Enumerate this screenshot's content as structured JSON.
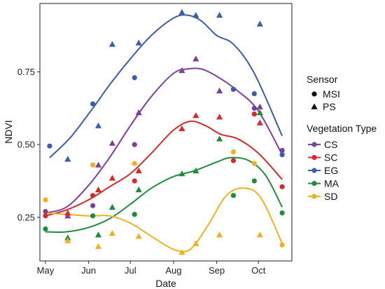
{
  "chart_data": {
    "type": "scatter",
    "title": "",
    "xlabel": "Date",
    "ylabel": "NDVI",
    "x_axis": {
      "range": [
        "2020-04-27",
        "2020-10-25"
      ],
      "ticks": [
        {
          "label": "May",
          "date": "2020-05-01"
        },
        {
          "label": "Jun",
          "date": "2020-06-01"
        },
        {
          "label": "Jul",
          "date": "2020-07-01"
        },
        {
          "label": "Aug",
          "date": "2020-08-01"
        },
        {
          "label": "Sep",
          "date": "2020-09-01"
        },
        {
          "label": "Oct",
          "date": "2020-10-01"
        }
      ]
    },
    "y_axis": {
      "range": [
        0.1,
        0.985
      ],
      "ticks": [
        0.25,
        0.5,
        0.75
      ],
      "tick_labels": [
        "0.25",
        "0.50",
        "0.75"
      ]
    },
    "grid": false,
    "legend_position": "right",
    "legends": {
      "sensor": {
        "title": "Sensor",
        "items": [
          {
            "label": "MSI",
            "shape": "circle"
          },
          {
            "label": "PS",
            "shape": "triangle"
          }
        ]
      },
      "vegetation": {
        "title": "Vegetation Type",
        "items": [
          {
            "label": "CS",
            "color": "#7B3F9E"
          },
          {
            "label": "SC",
            "color": "#D42A2A"
          },
          {
            "label": "EG",
            "color": "#3C5DAA"
          },
          {
            "label": "MA",
            "color": "#1E8C3A"
          },
          {
            "label": "SD",
            "color": "#F2B01E"
          }
        ]
      }
    },
    "series": [
      {
        "name": "CS",
        "color": "#7B3F9E",
        "points": [
          {
            "date": "2020-05-01",
            "y": 0.27,
            "sensor": "MSI"
          },
          {
            "date": "2020-05-17",
            "y": 0.255,
            "sensor": "PS"
          },
          {
            "date": "2020-06-04",
            "y": 0.29,
            "sensor": "MSI"
          },
          {
            "date": "2020-06-08",
            "y": 0.43,
            "sensor": "PS"
          },
          {
            "date": "2020-06-18",
            "y": 0.505,
            "sensor": "PS"
          },
          {
            "date": "2020-07-04",
            "y": 0.5,
            "sensor": "MSI"
          },
          {
            "date": "2020-07-07",
            "y": 0.61,
            "sensor": "PS"
          },
          {
            "date": "2020-08-07",
            "y": 0.755,
            "sensor": "PS"
          },
          {
            "date": "2020-08-17",
            "y": 0.795,
            "sensor": "PS"
          },
          {
            "date": "2020-09-03",
            "y": 0.685,
            "sensor": "PS"
          },
          {
            "date": "2020-09-13",
            "y": 0.69,
            "sensor": "MSI"
          },
          {
            "date": "2020-09-28",
            "y": 0.625,
            "sensor": "MSI"
          },
          {
            "date": "2020-10-02",
            "y": 0.63,
            "sensor": "PS"
          },
          {
            "date": "2020-10-18",
            "y": 0.48,
            "sensor": "MSI"
          }
        ],
        "trend": [
          {
            "date": "2020-05-01",
            "y": 0.265
          },
          {
            "date": "2020-05-16",
            "y": 0.285
          },
          {
            "date": "2020-06-01",
            "y": 0.36
          },
          {
            "date": "2020-06-16",
            "y": 0.455
          },
          {
            "date": "2020-07-01",
            "y": 0.565
          },
          {
            "date": "2020-07-16",
            "y": 0.665
          },
          {
            "date": "2020-08-01",
            "y": 0.745
          },
          {
            "date": "2020-08-11",
            "y": 0.76
          },
          {
            "date": "2020-08-21",
            "y": 0.76
          },
          {
            "date": "2020-09-01",
            "y": 0.735
          },
          {
            "date": "2020-09-16",
            "y": 0.685
          },
          {
            "date": "2020-10-01",
            "y": 0.615
          },
          {
            "date": "2020-10-18",
            "y": 0.465
          }
        ]
      },
      {
        "name": "SC",
        "color": "#D42A2A",
        "points": [
          {
            "date": "2020-05-01",
            "y": 0.255,
            "sensor": "MSI"
          },
          {
            "date": "2020-05-17",
            "y": 0.265,
            "sensor": "PS"
          },
          {
            "date": "2020-06-04",
            "y": 0.325,
            "sensor": "MSI"
          },
          {
            "date": "2020-06-08",
            "y": 0.345,
            "sensor": "PS"
          },
          {
            "date": "2020-06-18",
            "y": 0.385,
            "sensor": "PS"
          },
          {
            "date": "2020-07-04",
            "y": 0.375,
            "sensor": "MSI"
          },
          {
            "date": "2020-07-07",
            "y": 0.41,
            "sensor": "PS"
          },
          {
            "date": "2020-08-07",
            "y": 0.555,
            "sensor": "PS"
          },
          {
            "date": "2020-08-17",
            "y": 0.6,
            "sensor": "PS"
          },
          {
            "date": "2020-09-03",
            "y": 0.595,
            "sensor": "PS"
          },
          {
            "date": "2020-09-13",
            "y": 0.445,
            "sensor": "MSI"
          },
          {
            "date": "2020-09-28",
            "y": 0.605,
            "sensor": "MSI"
          },
          {
            "date": "2020-10-02",
            "y": 0.575,
            "sensor": "PS"
          },
          {
            "date": "2020-10-18",
            "y": 0.355,
            "sensor": "MSI"
          }
        ],
        "trend": [
          {
            "date": "2020-05-01",
            "y": 0.255
          },
          {
            "date": "2020-05-16",
            "y": 0.275
          },
          {
            "date": "2020-06-01",
            "y": 0.31
          },
          {
            "date": "2020-06-16",
            "y": 0.355
          },
          {
            "date": "2020-07-01",
            "y": 0.4
          },
          {
            "date": "2020-07-16",
            "y": 0.47
          },
          {
            "date": "2020-08-01",
            "y": 0.55
          },
          {
            "date": "2020-08-13",
            "y": 0.58
          },
          {
            "date": "2020-08-24",
            "y": 0.565
          },
          {
            "date": "2020-09-04",
            "y": 0.535
          },
          {
            "date": "2020-09-16",
            "y": 0.52
          },
          {
            "date": "2020-10-01",
            "y": 0.47
          },
          {
            "date": "2020-10-18",
            "y": 0.38
          }
        ]
      },
      {
        "name": "EG",
        "color": "#3C5DAA",
        "points": [
          {
            "date": "2020-05-04",
            "y": 0.495,
            "sensor": "MSI"
          },
          {
            "date": "2020-05-17",
            "y": 0.45,
            "sensor": "PS"
          },
          {
            "date": "2020-06-04",
            "y": 0.64,
            "sensor": "MSI"
          },
          {
            "date": "2020-06-08",
            "y": 0.565,
            "sensor": "PS"
          },
          {
            "date": "2020-06-18",
            "y": 0.845,
            "sensor": "PS"
          },
          {
            "date": "2020-07-04",
            "y": 0.73,
            "sensor": "MSI"
          },
          {
            "date": "2020-07-07",
            "y": 0.85,
            "sensor": "PS"
          },
          {
            "date": "2020-08-07",
            "y": 0.955,
            "sensor": "PS"
          },
          {
            "date": "2020-08-17",
            "y": 0.945,
            "sensor": "PS"
          },
          {
            "date": "2020-09-03",
            "y": 0.945,
            "sensor": "PS"
          },
          {
            "date": "2020-09-13",
            "y": 0.69,
            "sensor": "MSI"
          },
          {
            "date": "2020-09-28",
            "y": 0.675,
            "sensor": "MSI"
          },
          {
            "date": "2020-10-02",
            "y": 0.915,
            "sensor": "PS"
          },
          {
            "date": "2020-10-18",
            "y": 0.465,
            "sensor": "MSI"
          }
        ],
        "trend": [
          {
            "date": "2020-05-04",
            "y": 0.455
          },
          {
            "date": "2020-05-19",
            "y": 0.525
          },
          {
            "date": "2020-06-04",
            "y": 0.625
          },
          {
            "date": "2020-06-16",
            "y": 0.705
          },
          {
            "date": "2020-07-01",
            "y": 0.795
          },
          {
            "date": "2020-07-16",
            "y": 0.875
          },
          {
            "date": "2020-08-01",
            "y": 0.935
          },
          {
            "date": "2020-08-11",
            "y": 0.945
          },
          {
            "date": "2020-08-21",
            "y": 0.925
          },
          {
            "date": "2020-09-01",
            "y": 0.875
          },
          {
            "date": "2020-09-13",
            "y": 0.845
          },
          {
            "date": "2020-09-28",
            "y": 0.745
          },
          {
            "date": "2020-10-18",
            "y": 0.53
          }
        ]
      },
      {
        "name": "MA",
        "color": "#1E8C3A",
        "points": [
          {
            "date": "2020-05-01",
            "y": 0.21,
            "sensor": "MSI"
          },
          {
            "date": "2020-05-17",
            "y": 0.18,
            "sensor": "PS"
          },
          {
            "date": "2020-06-04",
            "y": 0.255,
            "sensor": "MSI"
          },
          {
            "date": "2020-06-08",
            "y": 0.19,
            "sensor": "PS"
          },
          {
            "date": "2020-06-18",
            "y": 0.285,
            "sensor": "PS"
          },
          {
            "date": "2020-07-04",
            "y": 0.26,
            "sensor": "MSI"
          },
          {
            "date": "2020-07-07",
            "y": 0.345,
            "sensor": "PS"
          },
          {
            "date": "2020-08-07",
            "y": 0.4,
            "sensor": "PS"
          },
          {
            "date": "2020-08-17",
            "y": 0.41,
            "sensor": "PS"
          },
          {
            "date": "2020-09-03",
            "y": 0.52,
            "sensor": "PS"
          },
          {
            "date": "2020-09-13",
            "y": 0.325,
            "sensor": "MSI"
          },
          {
            "date": "2020-09-28",
            "y": 0.375,
            "sensor": "MSI"
          },
          {
            "date": "2020-10-02",
            "y": 0.61,
            "sensor": "PS"
          },
          {
            "date": "2020-10-18",
            "y": 0.265,
            "sensor": "MSI"
          }
        ],
        "trend": [
          {
            "date": "2020-05-01",
            "y": 0.2
          },
          {
            "date": "2020-05-16",
            "y": 0.2
          },
          {
            "date": "2020-06-01",
            "y": 0.215
          },
          {
            "date": "2020-06-16",
            "y": 0.245
          },
          {
            "date": "2020-07-01",
            "y": 0.295
          },
          {
            "date": "2020-07-16",
            "y": 0.35
          },
          {
            "date": "2020-08-01",
            "y": 0.39
          },
          {
            "date": "2020-08-16",
            "y": 0.41
          },
          {
            "date": "2020-09-01",
            "y": 0.44
          },
          {
            "date": "2020-09-11",
            "y": 0.455
          },
          {
            "date": "2020-09-24",
            "y": 0.445
          },
          {
            "date": "2020-10-06",
            "y": 0.395
          },
          {
            "date": "2020-10-18",
            "y": 0.285
          }
        ]
      },
      {
        "name": "SD",
        "color": "#F2B01E",
        "points": [
          {
            "date": "2020-05-01",
            "y": 0.31,
            "sensor": "MSI"
          },
          {
            "date": "2020-05-17",
            "y": 0.17,
            "sensor": "PS"
          },
          {
            "date": "2020-06-04",
            "y": 0.43,
            "sensor": "MSI"
          },
          {
            "date": "2020-06-08",
            "y": 0.15,
            "sensor": "PS"
          },
          {
            "date": "2020-06-18",
            "y": 0.195,
            "sensor": "PS"
          },
          {
            "date": "2020-07-04",
            "y": 0.435,
            "sensor": "MSI"
          },
          {
            "date": "2020-07-07",
            "y": 0.185,
            "sensor": "PS"
          },
          {
            "date": "2020-08-07",
            "y": 0.13,
            "sensor": "PS"
          },
          {
            "date": "2020-08-17",
            "y": 0.16,
            "sensor": "PS"
          },
          {
            "date": "2020-09-03",
            "y": 0.19,
            "sensor": "PS"
          },
          {
            "date": "2020-09-13",
            "y": 0.475,
            "sensor": "MSI"
          },
          {
            "date": "2020-09-28",
            "y": 0.435,
            "sensor": "MSI"
          },
          {
            "date": "2020-10-02",
            "y": 0.19,
            "sensor": "PS"
          },
          {
            "date": "2020-10-18",
            "y": 0.155,
            "sensor": "MSI"
          }
        ],
        "trend": [
          {
            "date": "2020-05-01",
            "y": 0.265
          },
          {
            "date": "2020-05-16",
            "y": 0.26
          },
          {
            "date": "2020-06-01",
            "y": 0.255
          },
          {
            "date": "2020-06-16",
            "y": 0.255
          },
          {
            "date": "2020-07-01",
            "y": 0.23
          },
          {
            "date": "2020-07-16",
            "y": 0.185
          },
          {
            "date": "2020-08-01",
            "y": 0.14
          },
          {
            "date": "2020-08-13",
            "y": 0.14
          },
          {
            "date": "2020-08-26",
            "y": 0.225
          },
          {
            "date": "2020-09-08",
            "y": 0.325
          },
          {
            "date": "2020-09-21",
            "y": 0.35
          },
          {
            "date": "2020-10-03",
            "y": 0.315
          },
          {
            "date": "2020-10-18",
            "y": 0.16
          }
        ]
      }
    ]
  }
}
